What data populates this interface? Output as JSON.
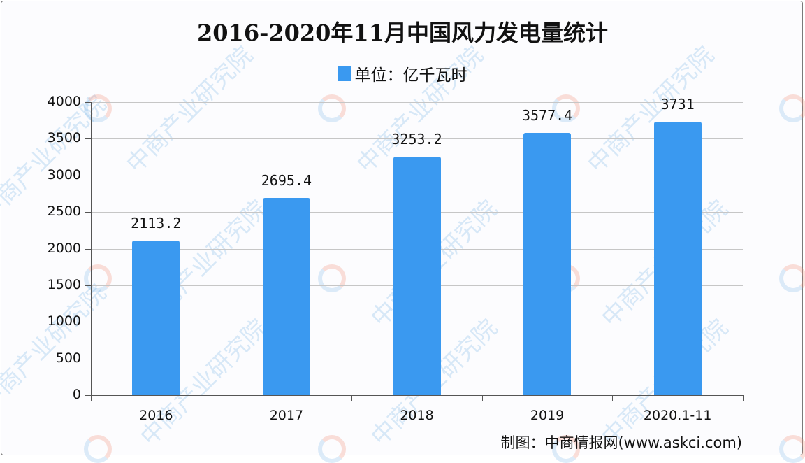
{
  "chart_data": {
    "type": "bar",
    "title": "2016-2020年11月中国风力发电量统计",
    "legend": [
      {
        "label": "单位：亿千瓦时",
        "color": "#3a99f0"
      }
    ],
    "legend_position": "top",
    "categories": [
      "2016",
      "2017",
      "2018",
      "2019",
      "2020.1-11"
    ],
    "series": [
      {
        "name": "单位：亿千瓦时",
        "values": [
          2113.2,
          2695.4,
          3253.2,
          3577.4,
          3731
        ],
        "color": "#3a99f0"
      }
    ],
    "data_labels": [
      "2113.2",
      "2695.4",
      "3253.2",
      "3577.4",
      "3731"
    ],
    "xlabel": "",
    "ylabel": "",
    "ylim": [
      0,
      4000
    ],
    "yticks": [
      0,
      500,
      1000,
      1500,
      2000,
      2500,
      3000,
      3500,
      4000
    ],
    "grid": true
  },
  "title": "2016-2020年11月中国风力发电量统计",
  "legend_label": "单位：亿千瓦时",
  "yticks": [
    "0",
    "500",
    "1000",
    "1500",
    "2000",
    "2500",
    "3000",
    "3500",
    "4000"
  ],
  "categories": [
    "2016",
    "2017",
    "2018",
    "2019",
    "2020.1-11"
  ],
  "data_labels": [
    "2113.2",
    "2695.4",
    "3253.2",
    "3577.4",
    "3731"
  ],
  "source": "制图：中商情报网(www.askci.com)",
  "watermark": "中商产业研究院",
  "colors": {
    "bar": "#3a99f0"
  }
}
